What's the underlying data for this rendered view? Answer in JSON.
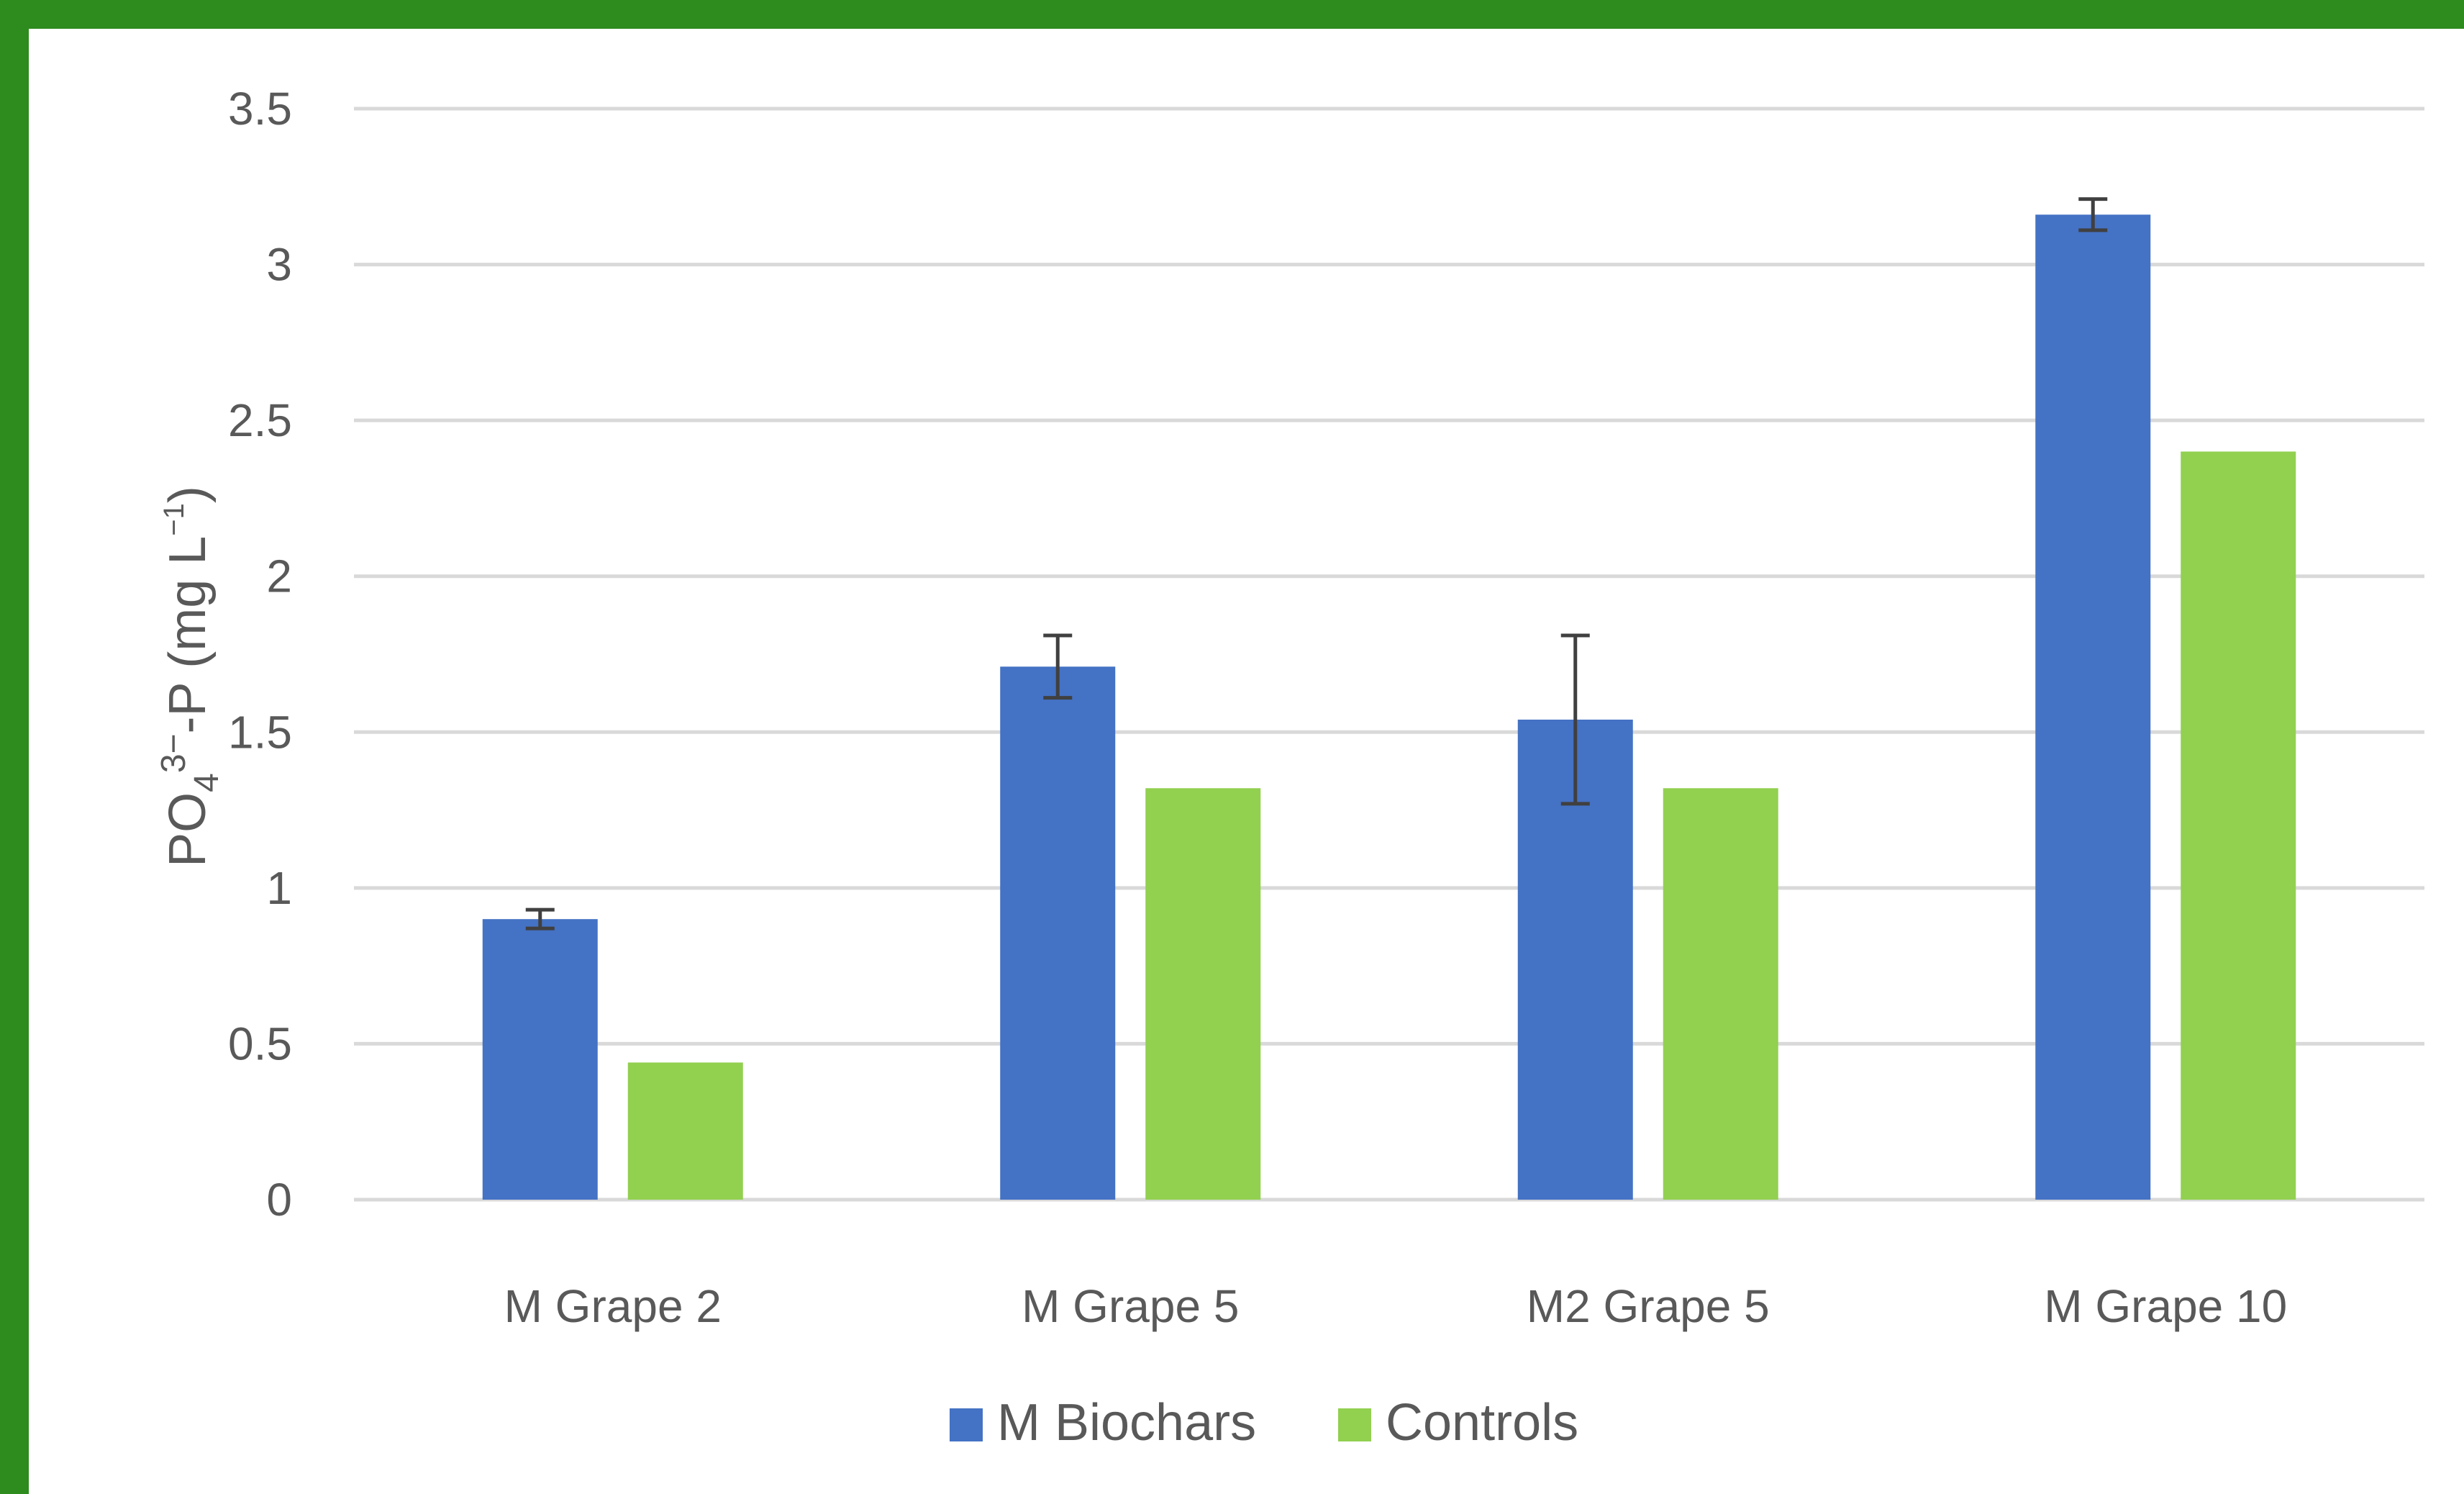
{
  "chart_data": {
    "type": "bar",
    "categories": [
      "M Grape 2",
      "M Grape 5",
      "M2 Grape 5",
      "M Grape 10"
    ],
    "series": [
      {
        "name": "M Biochars",
        "color": "#4472c4",
        "values": [
          0.9,
          1.71,
          1.54,
          3.16
        ],
        "error": [
          0.03,
          0.1,
          0.27,
          0.05
        ]
      },
      {
        "name": "Controls",
        "color": "#92d050",
        "values": [
          0.44,
          1.32,
          1.32,
          2.4
        ]
      }
    ],
    "ylabel_parts": {
      "base": "PO",
      "sub": "4",
      "sup": "3−",
      "mid": "-P (mg L",
      "unit_sup": "−1",
      "end": ")"
    },
    "y_ticks": [
      "0",
      "0.5",
      "1",
      "1.5",
      "2",
      "2.5",
      "3",
      "3.5"
    ],
    "ylim": [
      0,
      3.5
    ],
    "grid": true,
    "legend_position": "bottom"
  }
}
